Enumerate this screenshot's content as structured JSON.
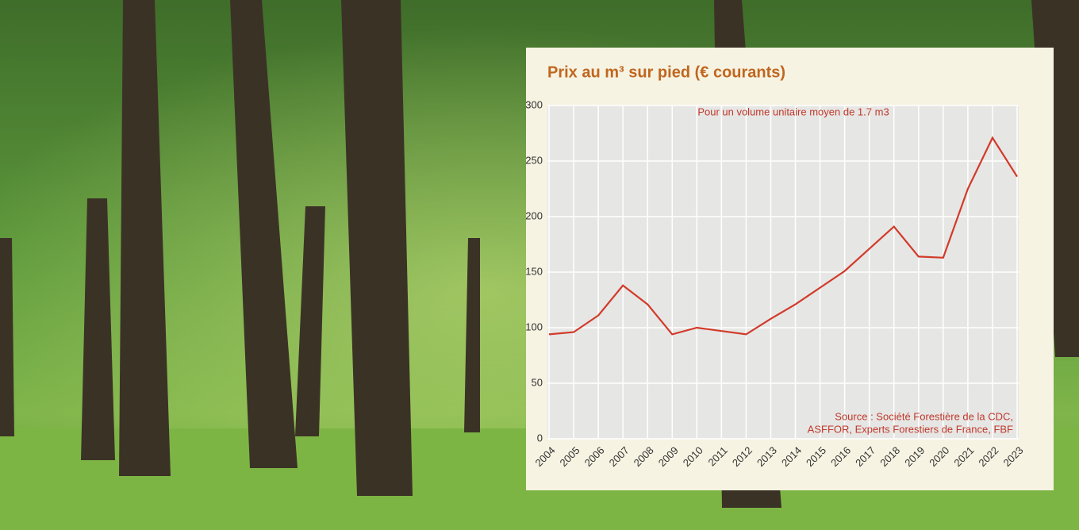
{
  "chart_data": {
    "type": "line",
    "title": "Prix au m³ sur pied (€ courants)",
    "subtitle": "Pour un volume unitaire moyen de 1.7 m3",
    "source": [
      "Source : Société Forestière de la CDC,",
      "ASFFOR, Experts Forestiers de France, FBF"
    ],
    "x": [
      2004,
      2005,
      2006,
      2007,
      2008,
      2009,
      2010,
      2011,
      2012,
      2013,
      2014,
      2015,
      2016,
      2017,
      2018,
      2019,
      2020,
      2021,
      2022,
      2023
    ],
    "series": [
      {
        "color": "#d23a2a",
        "values": [
          94,
          96,
          111,
          138,
          121,
          94,
          100,
          97,
          94,
          108,
          121,
          136,
          151,
          171,
          191,
          164,
          163,
          225,
          271,
          236
        ]
      }
    ],
    "xlim": [
      2004,
      2023
    ],
    "xticks": [
      2004,
      2005,
      2006,
      2007,
      2008,
      2009,
      2010,
      2011,
      2012,
      2013,
      2014,
      2015,
      2016,
      2017,
      2018,
      2019,
      2020,
      2021,
      2022,
      2023
    ],
    "ylim": [
      0,
      300
    ],
    "yticks": [
      0,
      50,
      100,
      150,
      200,
      250,
      300
    ],
    "grid": true
  }
}
